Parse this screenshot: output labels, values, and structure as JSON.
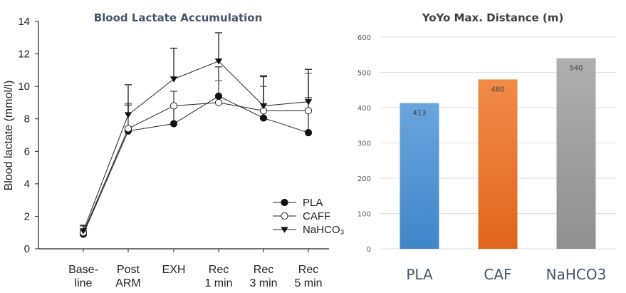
{
  "chart_data": [
    {
      "type": "line",
      "title": "Blood Lactate Accumulation",
      "xlabel": "",
      "ylabel": "Blood lactate (mmol/l)",
      "ylim": [
        0,
        14
      ],
      "yticks": [
        0,
        2,
        4,
        6,
        8,
        10,
        12,
        14
      ],
      "categories": [
        {
          "line1": "Base-",
          "line2": "line"
        },
        {
          "line1": "Post",
          "line2": "ARM"
        },
        {
          "line1": "EXH",
          "line2": ""
        },
        {
          "line1": "Rec",
          "line2": "1 min"
        },
        {
          "line1": "Rec",
          "line2": "3 min"
        },
        {
          "line1": "Rec",
          "line2": "5 min"
        }
      ],
      "legend_position": "bottom-right",
      "grid": false,
      "series": [
        {
          "name": "PLA",
          "marker": "filled-circle",
          "values": [
            0.9,
            7.25,
            7.7,
            9.4,
            8.05,
            7.15
          ],
          "error": [
            0.2,
            1.6,
            2.0,
            1.8,
            2.55,
            2.15
          ]
        },
        {
          "name": "CAFF",
          "marker": "open-circle",
          "values": [
            1.0,
            7.4,
            8.8,
            9.0,
            8.5,
            8.5
          ],
          "error": [
            0.4,
            1.55,
            0.9,
            1.35,
            1.5,
            2.3
          ]
        },
        {
          "name": "NaHCO₃",
          "marker": "filled-triangle-down",
          "values": [
            1.1,
            8.25,
            10.45,
            11.55,
            8.8,
            9.05
          ],
          "error": [
            0.35,
            1.85,
            1.9,
            1.75,
            1.85,
            2.0
          ]
        }
      ]
    },
    {
      "type": "bar",
      "title": "YoYo Max. Distance (m)",
      "xlabel": "",
      "ylabel": "",
      "ylim": [
        0,
        600
      ],
      "yticks": [
        0,
        100,
        200,
        300,
        400,
        500,
        600
      ],
      "grid": true,
      "categories": [
        "PLA",
        "CAF",
        "NaHCO3"
      ],
      "values": [
        413,
        480,
        540
      ],
      "data_labels": [
        "413",
        "480",
        "540"
      ],
      "colors": [
        "#5b9bd5",
        "#ed7d31",
        "#a5a5a5"
      ]
    }
  ]
}
